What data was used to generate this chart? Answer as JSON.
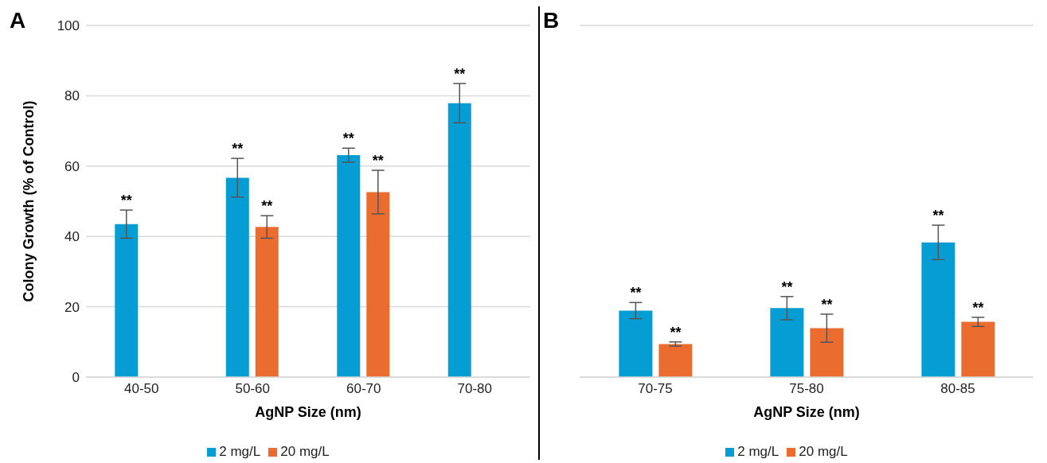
{
  "chart_data": [
    {
      "type": "bar",
      "title": "A",
      "xlabel": "AgNP Size (nm)",
      "ylabel": "Colony Growth (% of Control)",
      "categories": [
        "40-50",
        "50-60",
        "60-70",
        "70-80"
      ],
      "series": [
        {
          "name": "2 mg/L",
          "color": "#069dd4",
          "values": [
            43.5,
            56.7,
            63.1,
            77.9
          ],
          "errors": [
            4,
            5.5,
            2,
            5.6
          ]
        },
        {
          "name": "20 mg/L",
          "color": "#ea6d2f",
          "values": [
            null,
            42.7,
            52.6,
            null
          ],
          "errors": [
            null,
            3.2,
            6.2,
            null
          ]
        }
      ],
      "ylim": [
        0,
        100
      ],
      "yticks": [
        0,
        20,
        40,
        60,
        80,
        100
      ],
      "grid": "y",
      "legend": "bottom",
      "annotations": [
        "**",
        "**",
        "**",
        "**",
        "**",
        "**"
      ]
    },
    {
      "type": "bar",
      "title": "B",
      "xlabel": "AgNP Size (nm)",
      "categories": [
        "70-75",
        "75-80",
        "80-85"
      ],
      "series": [
        {
          "name": "2 mg/L",
          "color": "#069dd4",
          "values": [
            18.9,
            19.6,
            38.3
          ],
          "errors": [
            2.3,
            3.3,
            4.9
          ]
        },
        {
          "name": "20 mg/L",
          "color": "#ea6d2f",
          "values": [
            9.4,
            13.9,
            15.7
          ],
          "errors": [
            0.6,
            4,
            1.3
          ]
        }
      ],
      "ylim": [
        0,
        100
      ],
      "yticks": [
        0,
        20,
        40,
        60,
        80,
        100
      ],
      "grid": "y",
      "legend": "bottom",
      "tick_labels": "x",
      "annotations": [
        "**",
        "**",
        "**",
        "**",
        "**",
        "**"
      ]
    }
  ]
}
